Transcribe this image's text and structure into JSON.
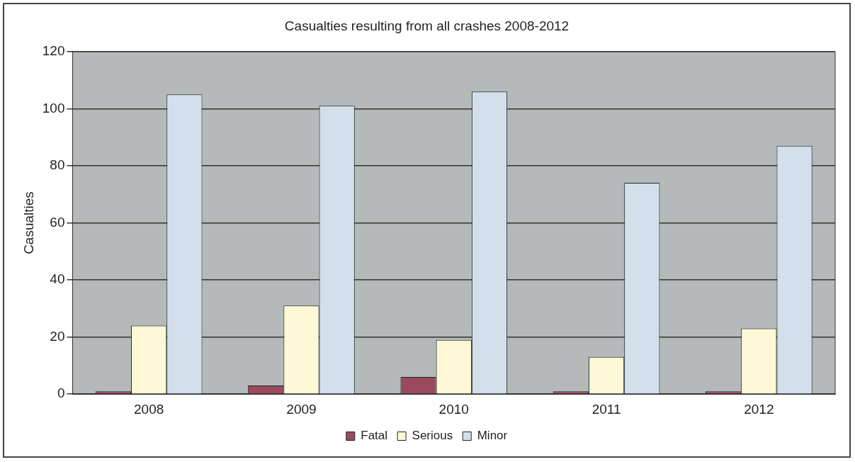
{
  "chart_data": {
    "type": "bar",
    "title": "Casualties resulting from all crashes 2008-2012",
    "ylabel": "Casualties",
    "categories": [
      "2008",
      "2009",
      "2010",
      "2011",
      "2012"
    ],
    "series": [
      {
        "name": "Fatal",
        "color": "#9b4a5e",
        "values": [
          1,
          3,
          6,
          1,
          1
        ]
      },
      {
        "name": "Serious",
        "color": "#fff8d6",
        "values": [
          24,
          31,
          19,
          13,
          23
        ]
      },
      {
        "name": "Minor",
        "color": "#d3dfea",
        "values": [
          105,
          101,
          106,
          74,
          87
        ]
      }
    ],
    "ylim": [
      0,
      120
    ],
    "yticks": [
      0,
      20,
      40,
      60,
      80,
      100,
      120
    ],
    "grid": "y",
    "legend": "bottom"
  }
}
